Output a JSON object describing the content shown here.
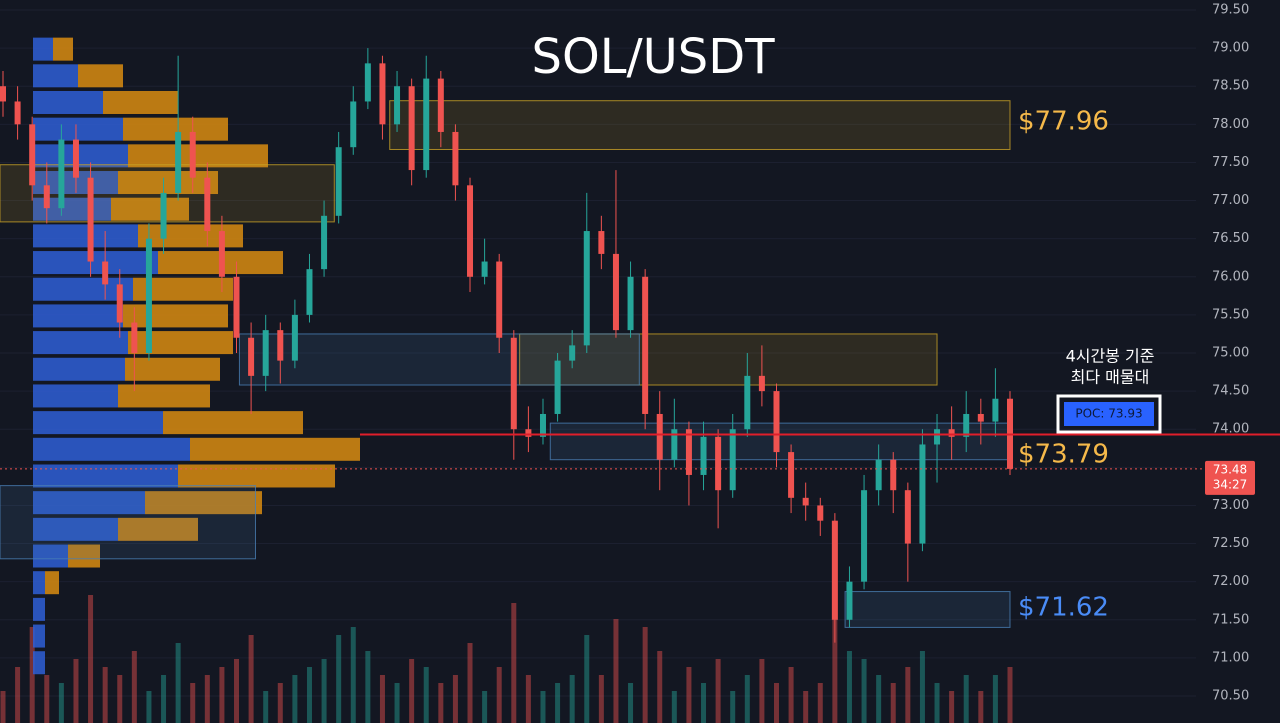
{
  "chart_data": {
    "type": "candlestick",
    "title": "SOL/USDT",
    "ylim": [
      70.5,
      79.5
    ],
    "yticks": [
      {
        "value": 79.5,
        "label": "79.50"
      },
      {
        "value": 79,
        "label": "79.00"
      },
      {
        "value": 78.5,
        "label": "78.50"
      },
      {
        "value": 78,
        "label": "78.00"
      },
      {
        "value": 77.5,
        "label": "77.50"
      },
      {
        "value": 77,
        "label": "77.00"
      },
      {
        "value": 76.5,
        "label": "76.50"
      },
      {
        "value": 76,
        "label": "76.00"
      },
      {
        "value": 75.5,
        "label": "75.50"
      },
      {
        "value": 75,
        "label": "75.00"
      },
      {
        "value": 74.5,
        "label": "74.50"
      },
      {
        "value": 74,
        "label": "74.00"
      },
      {
        "value": 73.5,
        "label": "73.50"
      },
      {
        "value": 73,
        "label": "73.00"
      },
      {
        "value": 72.5,
        "label": "72.50"
      },
      {
        "value": 72,
        "label": "72.00"
      },
      {
        "value": 71.5,
        "label": "71.50"
      },
      {
        "value": 71,
        "label": "71.00"
      },
      {
        "value": 70.5,
        "label": "70.50"
      }
    ],
    "grid": true,
    "up_color": "#26a69a",
    "down_color": "#ef5350",
    "candles": [
      [
        78.5,
        78.7,
        78.1,
        78.3
      ],
      [
        78.3,
        78.5,
        77.8,
        78.0
      ],
      [
        78.0,
        78.1,
        77.0,
        77.2
      ],
      [
        77.2,
        77.5,
        76.7,
        76.9
      ],
      [
        76.9,
        78.0,
        76.8,
        77.8
      ],
      [
        77.8,
        78.0,
        77.1,
        77.3
      ],
      [
        77.3,
        77.5,
        76.0,
        76.2
      ],
      [
        76.2,
        76.6,
        75.7,
        75.9
      ],
      [
        75.9,
        76.1,
        75.2,
        75.4
      ],
      [
        75.4,
        75.6,
        74.5,
        75.0
      ],
      [
        75.0,
        76.7,
        74.9,
        76.5
      ],
      [
        76.5,
        77.3,
        76.3,
        77.1
      ],
      [
        77.1,
        78.9,
        77.0,
        77.9
      ],
      [
        77.9,
        78.1,
        77.1,
        77.3
      ],
      [
        77.3,
        77.5,
        76.4,
        76.6
      ],
      [
        76.6,
        76.8,
        75.8,
        76.0
      ],
      [
        76.0,
        76.2,
        75.0,
        75.2
      ],
      [
        75.2,
        75.4,
        74.2,
        74.7
      ],
      [
        74.7,
        75.5,
        74.5,
        75.3
      ],
      [
        75.3,
        75.4,
        74.6,
        74.9
      ],
      [
        74.9,
        75.7,
        74.8,
        75.5
      ],
      [
        75.5,
        76.3,
        75.4,
        76.1
      ],
      [
        76.1,
        77.0,
        76.0,
        76.8
      ],
      [
        76.8,
        77.9,
        76.7,
        77.7
      ],
      [
        77.7,
        78.5,
        77.6,
        78.3
      ],
      [
        78.3,
        79.0,
        78.2,
        78.8
      ],
      [
        78.8,
        78.9,
        77.8,
        78.0
      ],
      [
        78.0,
        78.7,
        77.9,
        78.5
      ],
      [
        78.5,
        78.6,
        77.2,
        77.4
      ],
      [
        77.4,
        78.9,
        77.3,
        78.6
      ],
      [
        78.6,
        78.7,
        77.7,
        77.9
      ],
      [
        77.9,
        78.0,
        77.0,
        77.2
      ],
      [
        77.2,
        77.3,
        75.8,
        76.0
      ],
      [
        76.0,
        76.5,
        75.9,
        76.2
      ],
      [
        76.2,
        76.3,
        75.0,
        75.2
      ],
      [
        75.2,
        75.3,
        73.6,
        74.0
      ],
      [
        74.0,
        74.3,
        73.7,
        73.9
      ],
      [
        73.9,
        74.4,
        73.8,
        74.2
      ],
      [
        74.2,
        75.0,
        74.1,
        74.9
      ],
      [
        74.9,
        75.3,
        74.8,
        75.1
      ],
      [
        75.1,
        77.1,
        75.0,
        76.6
      ],
      [
        76.6,
        76.8,
        76.1,
        76.3
      ],
      [
        76.3,
        77.4,
        75.2,
        75.3
      ],
      [
        75.3,
        76.2,
        75.2,
        76.0
      ],
      [
        76.0,
        76.1,
        74.0,
        74.2
      ],
      [
        74.2,
        74.5,
        73.2,
        73.6
      ],
      [
        73.6,
        74.4,
        73.5,
        74.0
      ],
      [
        74.0,
        74.1,
        73.0,
        73.4
      ],
      [
        73.4,
        74.1,
        73.2,
        73.9
      ],
      [
        73.9,
        74.0,
        72.7,
        73.2
      ],
      [
        73.2,
        74.2,
        73.1,
        74.0
      ],
      [
        74.0,
        75.0,
        73.9,
        74.7
      ],
      [
        74.7,
        75.1,
        74.3,
        74.5
      ],
      [
        74.5,
        74.6,
        73.5,
        73.7
      ],
      [
        73.7,
        73.8,
        72.9,
        73.1
      ],
      [
        73.1,
        73.3,
        72.8,
        73.0
      ],
      [
        73.0,
        73.1,
        72.6,
        72.8
      ],
      [
        72.8,
        72.9,
        71.2,
        71.5
      ],
      [
        71.5,
        72.2,
        71.4,
        72.0
      ],
      [
        72.0,
        73.4,
        71.9,
        73.2
      ],
      [
        73.2,
        73.8,
        73.0,
        73.6
      ],
      [
        73.6,
        73.7,
        72.9,
        73.2
      ],
      [
        73.2,
        73.3,
        72.0,
        72.5
      ],
      [
        72.5,
        74.0,
        72.4,
        73.8
      ],
      [
        73.8,
        74.2,
        73.3,
        74.0
      ],
      [
        74.0,
        74.3,
        73.6,
        73.9
      ],
      [
        73.9,
        74.5,
        73.7,
        74.2
      ],
      [
        74.2,
        74.4,
        73.8,
        74.1
      ],
      [
        74.1,
        74.8,
        73.9,
        74.4
      ],
      [
        74.4,
        74.5,
        73.4,
        73.48
      ]
    ],
    "volume": [
      20,
      35,
      60,
      30,
      25,
      40,
      80,
      35,
      30,
      45,
      20,
      30,
      50,
      25,
      30,
      35,
      40,
      55,
      20,
      25,
      30,
      35,
      40,
      55,
      60,
      45,
      30,
      25,
      40,
      35,
      25,
      30,
      50,
      20,
      35,
      75,
      30,
      20,
      25,
      30,
      55,
      30,
      65,
      25,
      60,
      45,
      20,
      35,
      25,
      40,
      20,
      30,
      40,
      25,
      35,
      20,
      25,
      100,
      45,
      40,
      30,
      25,
      35,
      45,
      25,
      20,
      30,
      20,
      30,
      35
    ],
    "profile_start": 78.98,
    "profile_step": 0.35,
    "profile_blue": [
      20,
      45,
      70,
      90,
      95,
      85,
      78,
      105,
      125,
      100,
      90,
      95,
      92,
      85,
      130,
      157,
      145,
      112,
      85,
      35,
      12,
      12,
      12,
      12
    ],
    "profile_orange": [
      20,
      45,
      75,
      105,
      140,
      100,
      78,
      105,
      125,
      100,
      105,
      105,
      95,
      92,
      140,
      170,
      157,
      117,
      80,
      32,
      14,
      0,
      0,
      0
    ],
    "zones": [
      {
        "top": 78.31,
        "bottom": 77.67,
        "from": 26.5,
        "to": 69,
        "color": "#c9a227"
      },
      {
        "top": 77.47,
        "bottom": 76.72,
        "from": -1,
        "to": 22.7,
        "color": "#c9a227"
      },
      {
        "top": 75.25,
        "bottom": 74.58,
        "from": 35.4,
        "to": 64,
        "color": "#c9a227"
      },
      {
        "top": 75.25,
        "bottom": 74.58,
        "from": 16.2,
        "to": 43.6,
        "color": "#4a7fb5"
      },
      {
        "top": 74.08,
        "bottom": 73.6,
        "from": 37.5,
        "to": 69,
        "color": "#4a7fb5"
      },
      {
        "top": 73.26,
        "bottom": 72.3,
        "from": -1,
        "to": 17.3,
        "color": "#4a7fb5"
      },
      {
        "top": 71.87,
        "bottom": 71.4,
        "from": 57.7,
        "to": 69,
        "color": "#4a7fb5"
      }
    ],
    "poc_price": 73.93,
    "poc_label": "POC: 73.93",
    "last_price": 73.48,
    "last_label": "73.48",
    "countdown": "34:27",
    "annotation": [
      "4시간봉 기준",
      "최다 매물대"
    ],
    "levels": [
      "$77.96",
      "$73.79",
      "$71.62"
    ]
  }
}
